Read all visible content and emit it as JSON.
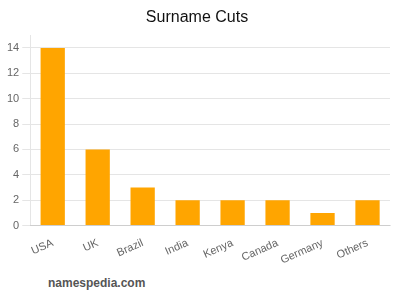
{
  "chart_data": {
    "type": "bar",
    "title": "Surname Cuts",
    "categories": [
      "USA",
      "UK",
      "Brazil",
      "India",
      "Kenya",
      "Canada",
      "Germany",
      "Others"
    ],
    "values": [
      14,
      6,
      3,
      2,
      2,
      2,
      1,
      2
    ],
    "color": "#FFA500",
    "ylim": [
      0,
      15
    ],
    "yticks": [
      0,
      2,
      4,
      6,
      8,
      10,
      12,
      14
    ],
    "grid": true,
    "annotations": [
      "namespedia.com"
    ]
  }
}
